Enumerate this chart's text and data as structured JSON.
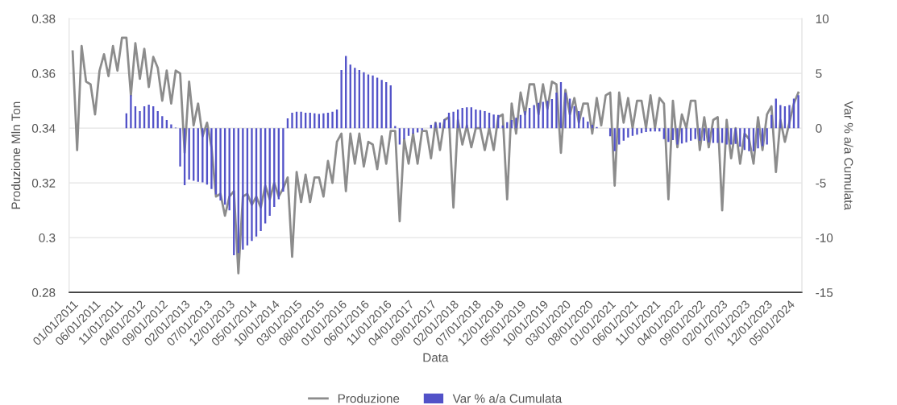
{
  "chart_data": {
    "type": "bar",
    "xlabel": "Data",
    "ylabel": "Produzione Mln Ton",
    "y2label": "Var % a/a Cumulata",
    "categories": [
      "01/01/2011",
      null,
      null,
      null,
      null,
      "06/01/2011",
      null,
      null,
      null,
      null,
      "11/01/2011",
      null,
      null,
      null,
      null,
      "04/01/2012",
      null,
      null,
      null,
      null,
      "09/01/2012",
      null,
      null,
      null,
      null,
      "02/01/2013",
      null,
      null,
      null,
      null,
      "07/01/2013",
      null,
      null,
      null,
      null,
      "12/01/2013",
      null,
      null,
      null,
      null,
      "05/01/2014",
      null,
      null,
      null,
      null,
      "10/01/2014",
      null,
      null,
      null,
      null,
      "03/01/2015",
      null,
      null,
      null,
      null,
      "08/01/2015",
      null,
      null,
      null,
      null,
      "01/01/2016",
      null,
      null,
      null,
      null,
      "06/01/2016",
      null,
      null,
      null,
      null,
      "11/01/2016",
      null,
      null,
      null,
      null,
      "04/01/2017",
      null,
      null,
      null,
      null,
      "09/01/2017",
      null,
      null,
      null,
      null,
      "02/01/2018",
      null,
      null,
      null,
      null,
      "07/01/2018",
      null,
      null,
      null,
      null,
      "12/01/2018",
      null,
      null,
      null,
      null,
      "05/01/2019",
      null,
      null,
      null,
      null,
      "10/01/2019",
      null,
      null,
      null,
      null,
      "03/01/2020",
      null,
      null,
      null,
      null,
      "08/01/2020",
      null,
      null,
      null,
      null,
      "01/01/2021",
      null,
      null,
      null,
      null,
      "06/01/2021",
      null,
      null,
      null,
      null,
      "11/01/2021",
      null,
      null,
      null,
      null,
      "04/01/2022",
      null,
      null,
      null,
      null,
      "09/01/2022",
      null,
      null,
      null,
      null,
      "02/01/2023",
      null,
      null,
      null,
      null,
      "07/01/2023",
      null,
      null,
      null,
      null,
      "12/01/2023",
      null,
      null,
      null,
      null,
      "05/01/2024",
      null,
      null
    ],
    "series": [
      {
        "name": "Produzione",
        "type": "line",
        "color": "#8c8c8c",
        "values": [
          0.368,
          0.332,
          0.37,
          0.357,
          0.356,
          0.345,
          0.361,
          0.367,
          0.359,
          0.37,
          0.361,
          0.373,
          0.373,
          0.352,
          0.371,
          0.358,
          0.369,
          0.355,
          0.366,
          0.362,
          0.35,
          0.361,
          0.349,
          0.361,
          0.36,
          0.331,
          0.357,
          0.341,
          0.349,
          0.337,
          0.342,
          0.333,
          0.315,
          0.316,
          0.308,
          0.315,
          0.317,
          0.287,
          0.315,
          0.316,
          0.312,
          0.315,
          0.311,
          0.319,
          0.314,
          0.32,
          0.315,
          0.318,
          0.322,
          0.293,
          0.324,
          0.313,
          0.323,
          0.313,
          0.322,
          0.322,
          0.315,
          0.328,
          0.32,
          0.335,
          0.338,
          0.317,
          0.338,
          0.327,
          0.338,
          0.326,
          0.335,
          0.334,
          0.325,
          0.337,
          0.327,
          0.339,
          0.339,
          0.306,
          0.336,
          0.327,
          0.338,
          0.327,
          0.339,
          0.339,
          0.329,
          0.342,
          0.332,
          0.343,
          0.344,
          0.311,
          0.343,
          0.334,
          0.341,
          0.333,
          0.34,
          0.34,
          0.332,
          0.34,
          0.332,
          0.344,
          0.345,
          0.314,
          0.349,
          0.338,
          0.353,
          0.345,
          0.356,
          0.356,
          0.345,
          0.356,
          0.347,
          0.357,
          0.356,
          0.331,
          0.354,
          0.345,
          0.351,
          0.342,
          0.349,
          0.349,
          0.338,
          0.351,
          0.341,
          0.352,
          0.353,
          0.319,
          0.353,
          0.342,
          0.351,
          0.34,
          0.35,
          0.35,
          0.34,
          0.352,
          0.34,
          0.351,
          0.349,
          0.314,
          0.35,
          0.333,
          0.345,
          0.34,
          0.35,
          0.35,
          0.332,
          0.344,
          0.333,
          0.343,
          0.344,
          0.31,
          0.343,
          0.329,
          0.34,
          0.327,
          0.338,
          0.336,
          0.327,
          0.344,
          0.332,
          0.345,
          0.348,
          0.324,
          0.343,
          0.335,
          0.342,
          0.349,
          0.353
        ]
      },
      {
        "name": "Var % a/a Cumulata",
        "axis": "y2",
        "color": "#5252c8",
        "values": [
          null,
          null,
          null,
          null,
          null,
          null,
          null,
          null,
          null,
          null,
          null,
          null,
          1.35,
          3.0,
          2.0,
          1.55,
          2.0,
          2.15,
          2.0,
          1.55,
          1.1,
          0.75,
          0.35,
          0.05,
          -3.5,
          -5.2,
          -4.7,
          -4.8,
          -4.9,
          -4.95,
          -5.15,
          -5.55,
          -6.05,
          -6.6,
          -7.0,
          -7.5,
          -11.6,
          -11.4,
          -11.1,
          -10.7,
          -10.3,
          -9.9,
          -9.4,
          -8.7,
          -8.0,
          -7.2,
          -6.5,
          -5.8,
          0.9,
          1.4,
          1.5,
          1.5,
          1.4,
          1.4,
          1.35,
          1.3,
          1.35,
          1.4,
          1.5,
          1.7,
          5.3,
          6.6,
          5.8,
          5.5,
          5.3,
          5.1,
          4.9,
          4.8,
          4.6,
          4.4,
          4.2,
          3.9,
          0.2,
          -1.5,
          -1.0,
          -0.7,
          -0.5,
          -0.4,
          -0.2,
          0.0,
          0.3,
          0.5,
          0.5,
          0.8,
          1.4,
          1.5,
          1.7,
          1.85,
          1.9,
          1.9,
          1.7,
          1.65,
          1.55,
          1.4,
          1.25,
          1.2,
          0.25,
          0.55,
          0.75,
          0.95,
          1.2,
          1.55,
          1.85,
          2.1,
          2.3,
          2.4,
          2.5,
          2.65,
          3.25,
          4.2,
          3.25,
          2.7,
          2.0,
          1.55,
          1.0,
          0.6,
          0.3,
          0.1,
          0.0,
          0.0,
          -0.75,
          -2.1,
          -1.5,
          -1.15,
          -0.85,
          -0.7,
          -0.6,
          -0.45,
          -0.35,
          -0.3,
          -0.3,
          -0.3,
          -1.0,
          -1.25,
          -1.1,
          -1.5,
          -1.4,
          -1.3,
          -1.15,
          -1.0,
          -1.15,
          -1.15,
          -1.3,
          -1.35,
          -1.35,
          -1.35,
          -1.5,
          -1.5,
          -1.45,
          -1.7,
          -2.0,
          -2.1,
          -2.1,
          -1.85,
          -1.65,
          -1.5,
          1.2,
          2.7,
          2.1,
          2.0,
          2.1,
          2.7,
          3.0
        ]
      }
    ],
    "ylim": [
      0.28,
      0.38
    ],
    "yticks": [
      0.28,
      0.3,
      0.32,
      0.34,
      0.36,
      0.38
    ],
    "y2lim": [
      -15,
      10
    ],
    "y2ticks": [
      -15,
      -10,
      -5,
      0,
      5,
      10
    ],
    "grid": "y",
    "legend": "bottom"
  }
}
